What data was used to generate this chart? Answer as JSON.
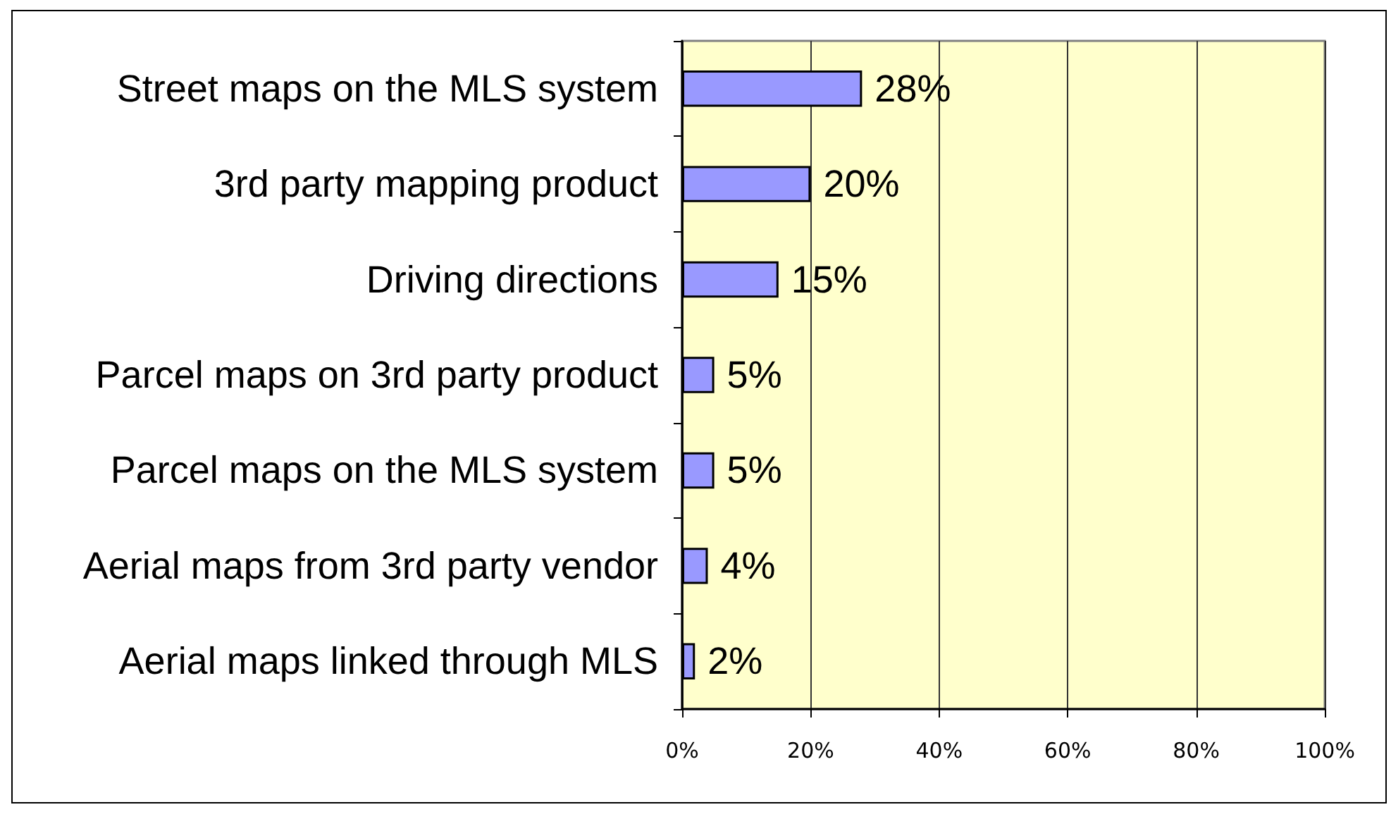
{
  "chart_data": {
    "type": "bar",
    "orientation": "horizontal",
    "categories": [
      "Street maps on the MLS system",
      "3rd party mapping product",
      "Driving directions",
      "Parcel maps on 3rd party product",
      "Parcel maps on the MLS system",
      "Aerial maps from 3rd party vendor",
      "Aerial maps linked through MLS"
    ],
    "values": [
      28,
      20,
      15,
      5,
      5,
      4,
      2
    ],
    "value_labels": [
      "28%",
      "20%",
      "15%",
      "5%",
      "5%",
      "4%",
      "2%"
    ],
    "color": "#9999ff",
    "xlim": [
      0,
      100
    ],
    "xticks": [
      {
        "value": 0,
        "label": "0%"
      },
      {
        "value": 20,
        "label": "20%"
      },
      {
        "value": 40,
        "label": "40%"
      },
      {
        "value": 60,
        "label": "60%"
      },
      {
        "value": 80,
        "label": "80%"
      },
      {
        "value": 100,
        "label": "100%"
      }
    ],
    "grid": "x"
  }
}
